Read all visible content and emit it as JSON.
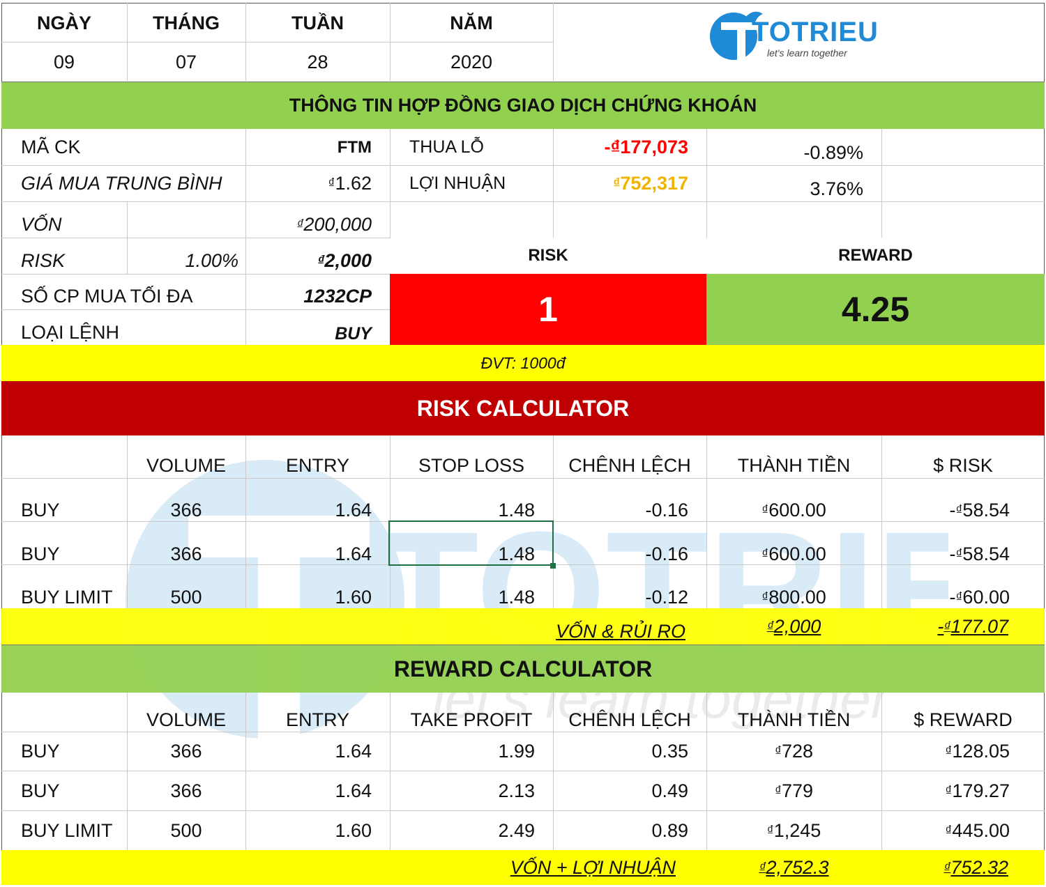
{
  "date": {
    "headers": [
      "NGÀY",
      "THÁNG",
      "TUẦN",
      "NĂM"
    ],
    "values": [
      "09",
      "07",
      "28",
      "2020"
    ]
  },
  "logo": {
    "name": "TOTRIEU",
    "tagline": "let's learn together"
  },
  "contract": {
    "title": "THÔNG TIN HỢP ĐỒNG GIAO DỊCH CHỨNG KHOÁN",
    "ticker_label": "MÃ CK",
    "ticker_value": "FTM",
    "avg_price_label": "GIÁ MUA TRUNG BÌNH",
    "avg_price_value": "1.62",
    "capital_label": "VỐN",
    "capital_value": "200,000",
    "risk_label": "RISK",
    "risk_pct": "1.00%",
    "risk_value": "2,000",
    "max_shares_label": "SỐ CP MUA TỐI ĐA",
    "max_shares_value": "1232CP",
    "order_type_label": "LOẠI LỆNH",
    "order_type_value": "BUY",
    "loss_label": "THUA LỖ",
    "loss_value": "-₫177,073",
    "loss_pct": "-0.89%",
    "profit_label": "LỢI NHUẬN",
    "profit_value": "752,317",
    "profit_pct": "3.76%",
    "rr_risk_label": "RISK",
    "rr_reward_label": "REWARD",
    "rr_risk_value": "1",
    "rr_reward_value": "4.25",
    "unit_note": "ĐVT: 1000đ",
    "colors": {
      "green": "#92d050",
      "yellow": "#ffff00",
      "dark_red": "#c00000",
      "red": "#ff0000"
    }
  },
  "risk_calc": {
    "title": "RISK CALCULATOR",
    "headers": [
      "",
      "VOLUME",
      "ENTRY",
      "STOP LOSS",
      "CHÊNH LỆCH",
      "THÀNH TIỀN",
      "$ RISK"
    ],
    "rows": [
      {
        "type": "BUY",
        "volume": "366",
        "entry": "1.64",
        "stop": "1.48",
        "diff": "-0.16",
        "amount": "600.00",
        "risk": "58.54"
      },
      {
        "type": "BUY",
        "volume": "366",
        "entry": "1.64",
        "stop": "1.48",
        "diff": "-0.16",
        "amount": "600.00",
        "risk": "58.54"
      },
      {
        "type": "BUY LIMIT",
        "volume": "500",
        "entry": "1.60",
        "stop": "1.48",
        "diff": "-0.12",
        "amount": "800.00",
        "risk": "60.00"
      }
    ],
    "total_label": "VỐN & RỦI RO",
    "total_amount": "2,000",
    "total_risk": "177.07"
  },
  "reward_calc": {
    "title": "REWARD CALCULATOR",
    "headers": [
      "",
      "VOLUME",
      "ENTRY",
      "TAKE PROFIT",
      "CHÊNH LỆCH",
      "THÀNH TIỀN",
      "$ REWARD"
    ],
    "rows": [
      {
        "type": "BUY",
        "volume": "366",
        "entry": "1.64",
        "tp": "1.99",
        "diff": "0.35",
        "amount": "728",
        "reward": "128.05"
      },
      {
        "type": "BUY",
        "volume": "366",
        "entry": "1.64",
        "tp": "2.13",
        "diff": "0.49",
        "amount": "779",
        "reward": "179.27"
      },
      {
        "type": "BUY LIMIT",
        "volume": "500",
        "entry": "1.60",
        "tp": "2.49",
        "diff": "0.89",
        "amount": "1,245",
        "reward": "445.00"
      }
    ],
    "total_label": "VỐN + LỢI NHUẬN",
    "total_amount": "2,752.3",
    "total_reward": "752.32"
  }
}
